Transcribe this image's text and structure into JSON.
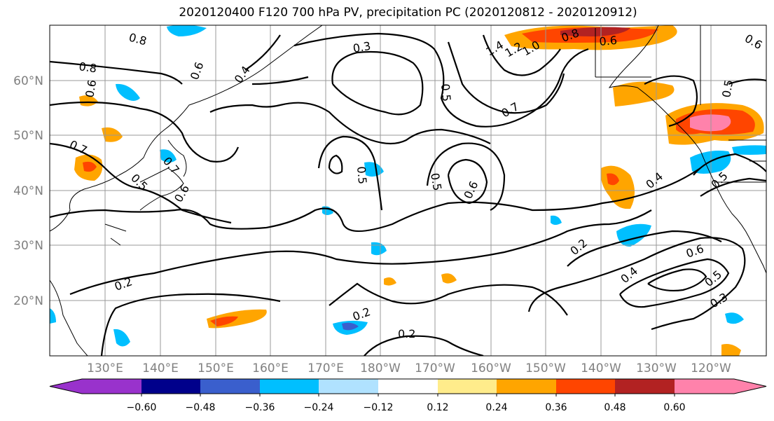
{
  "title": "2020120400 F120 700 hPa PV, precipitation PC (2020120812 - 2020120912)",
  "map": {
    "lat_labels": [
      "60°N",
      "50°N",
      "40°N",
      "30°N",
      "20°N"
    ],
    "lon_labels": [
      "130°E",
      "140°E",
      "150°E",
      "160°E",
      "170°E",
      "180°W",
      "170°W",
      "160°W",
      "150°W",
      "140°W",
      "130°W",
      "120°W"
    ],
    "contour_labels": [
      "0.8",
      "0.8",
      "0.6",
      "0.7",
      "0.6",
      "0.4",
      "0.7",
      "0.5",
      "0.6",
      "0.3",
      "1.4",
      "1.2",
      "1.0",
      "0.8",
      "0.6",
      "0.6",
      "0.5",
      "0.7",
      "0.5",
      "0.5",
      "0.6",
      "0.5",
      "0.4",
      "0.5",
      "0.2",
      "0.6",
      "0.5",
      "0.4",
      "0.3",
      "0.2",
      "0.2",
      "0.2"
    ],
    "shading": "precipitation PC",
    "contours": "700 hPa PV"
  },
  "colorbar": {
    "ticks": [
      "−0.60",
      "−0.48",
      "−0.36",
      "−0.24",
      "−0.12",
      "0.12",
      "0.24",
      "0.36",
      "0.48",
      "0.60"
    ],
    "colors": [
      "#9932cc",
      "#00008b",
      "#3a5fcd",
      "#00bfff",
      "#b0e2ff",
      "#ffffff",
      "#ffec8b",
      "#ffa500",
      "#ff4500",
      "#b22222",
      "#ff82ab"
    ]
  }
}
